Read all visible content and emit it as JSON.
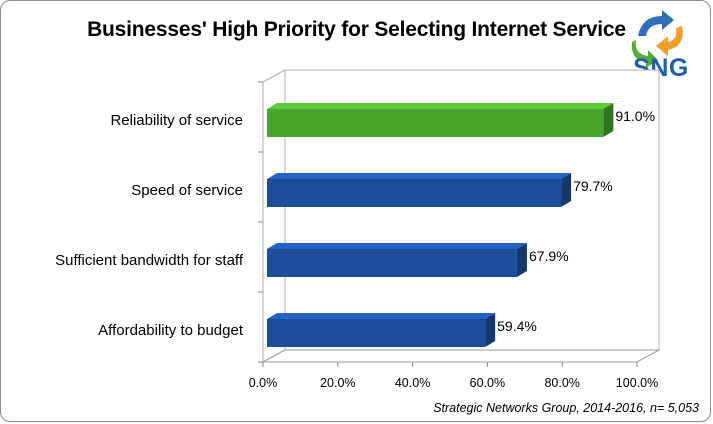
{
  "chart_data": {
    "type": "bar",
    "orientation": "horizontal",
    "title": "Businesses' High Priority for Selecting Internet Service",
    "categories": [
      "Reliability of service",
      "Speed of service",
      "Sufficient bandwidth for staff",
      "Affordability to budget"
    ],
    "values": [
      91.0,
      79.7,
      67.9,
      59.4
    ],
    "value_labels": [
      "91.0%",
      "79.7%",
      "67.9%",
      "59.4%"
    ],
    "bar_colors": [
      "#4aa52e",
      "#1e4e9b",
      "#1e4e9b",
      "#1e4e9b"
    ],
    "xlim": [
      0,
      100
    ],
    "x_ticks": [
      0,
      20,
      40,
      60,
      80,
      100
    ],
    "x_tick_labels": [
      "0.0%",
      "20.0%",
      "40.0%",
      "60.0%",
      "80.0%",
      "100.0%"
    ],
    "xlabel": "",
    "ylabel": "",
    "grid": false,
    "style": "3d"
  },
  "logo": {
    "text": "SNG",
    "brand_color": "#1f5fa8",
    "icon": "recycle-arrows-icon"
  },
  "source_note": "Strategic Networks Group, 2014-2016, n= 5,053"
}
